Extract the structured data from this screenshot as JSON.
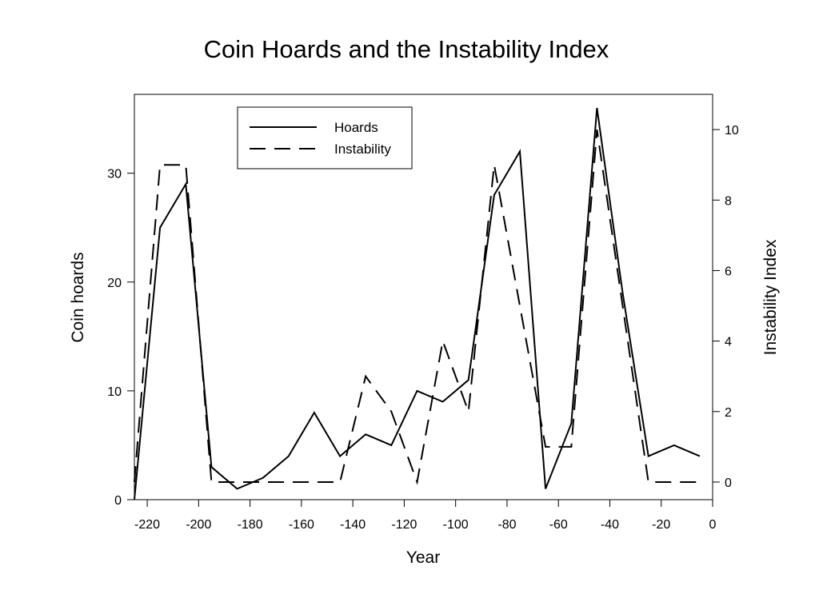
{
  "chart_data": {
    "type": "line",
    "title": "Coin Hoards and the Instability Index",
    "xlabel": "Year",
    "ylabel": "Coin hoards",
    "y2label": "Instability Index",
    "xlim": [
      -225,
      0
    ],
    "ylim": [
      0,
      36
    ],
    "y2lim": [
      -0.5,
      11
    ],
    "x_ticks": [
      -220,
      -200,
      -180,
      -160,
      -140,
      -120,
      -100,
      -80,
      -60,
      -40,
      -20,
      0
    ],
    "y_ticks": [
      0,
      10,
      20,
      30
    ],
    "y2_ticks": [
      0,
      2,
      4,
      6,
      8,
      10
    ],
    "legend_position": "top-center",
    "series": [
      {
        "name": "Hoards",
        "axis": "left",
        "style": "solid",
        "x": [
          -225,
          -215,
          -205,
          -195,
          -185,
          -175,
          -165,
          -155,
          -145,
          -135,
          -125,
          -115,
          -105,
          -95,
          -85,
          -75,
          -65,
          -55,
          -45,
          -35,
          -25,
          -15,
          -5
        ],
        "y": [
          0,
          25,
          29,
          3,
          1,
          2,
          4,
          8,
          4,
          6,
          5,
          10,
          9,
          11,
          28,
          32,
          1,
          7,
          36,
          19,
          4,
          5,
          4
        ]
      },
      {
        "name": "Instability",
        "axis": "right",
        "style": "dashed",
        "x": [
          -225,
          -215,
          -205,
          -195,
          -185,
          -175,
          -165,
          -155,
          -145,
          -135,
          -125,
          -115,
          -105,
          -95,
          -85,
          -75,
          -65,
          -55,
          -45,
          -35,
          -25,
          -15,
          -5
        ],
        "y": [
          0,
          9,
          9,
          0,
          0,
          0,
          0,
          0,
          0,
          3,
          2,
          0,
          4,
          2,
          9,
          5,
          1,
          1,
          10,
          5,
          0,
          0,
          0
        ]
      }
    ]
  }
}
